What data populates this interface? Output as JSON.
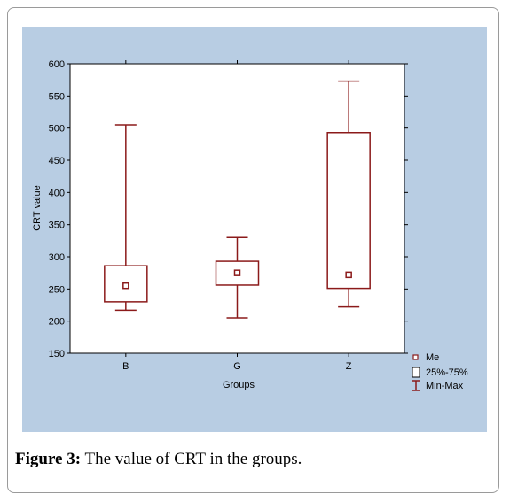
{
  "figure": {
    "caption_label": "Figure 3:",
    "caption_text": " The value of CRT in the groups."
  },
  "chart_data": {
    "type": "box",
    "xlabel": "Groups",
    "ylabel": "CRT value",
    "ylim": [
      150,
      600
    ],
    "yticks": [
      150,
      200,
      250,
      300,
      350,
      400,
      450,
      500,
      550,
      600
    ],
    "grid": false,
    "categories": [
      "B",
      "G",
      "Z"
    ],
    "boxes": [
      {
        "group": "B",
        "min": 217,
        "q1": 230,
        "median": 255,
        "q3": 286,
        "max": 505
      },
      {
        "group": "G",
        "min": 205,
        "q1": 256,
        "median": 275,
        "q3": 293,
        "max": 330
      },
      {
        "group": "Z",
        "min": 222,
        "q1": 251,
        "median": 272,
        "q3": 493,
        "max": 573
      }
    ],
    "legend": {
      "placement": "bottom-right",
      "items": [
        "Me",
        "25%-75%",
        "Min-Max"
      ]
    },
    "colors": {
      "box": "#8b1a1a",
      "background": "#b8cde3"
    }
  }
}
